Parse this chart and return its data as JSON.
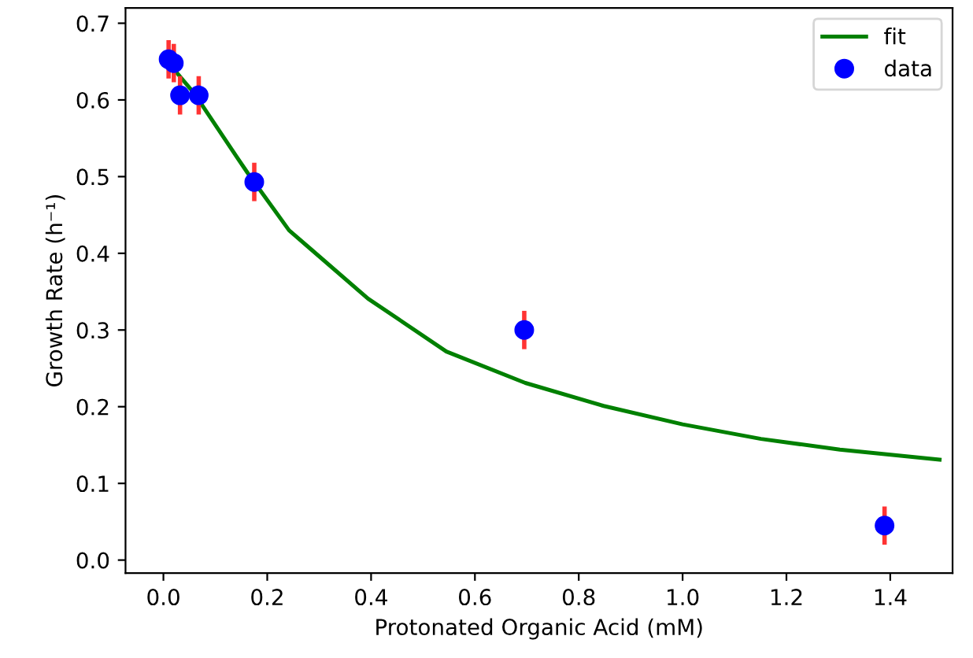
{
  "chart_data": {
    "type": "scatter",
    "xlabel": "Protonated Organic Acid (mM)",
    "ylabel": "Growth Rate (h⁻¹)",
    "series": [
      {
        "name": "fit",
        "type": "line",
        "color": "#008000",
        "marker": "none",
        "x": [
          0,
          0.06,
          0.141,
          0.162,
          0.242,
          0.283,
          0.394,
          0.545,
          0.697,
          0.848,
          1.0,
          1.151,
          1.303,
          1.495
        ],
        "values": [
          0.656,
          0.608,
          0.526,
          0.505,
          0.43,
          0.406,
          0.341,
          0.272,
          0.231,
          0.201,
          0.177,
          0.158,
          0.144,
          0.131
        ]
      },
      {
        "name": "data",
        "color": "#0000ff",
        "marker": "circle",
        "x": [
          0.01,
          0.02,
          0.032,
          0.068,
          0.175,
          0.695,
          1.389
        ],
        "values": [
          0.653,
          0.648,
          0.606,
          0.606,
          0.493,
          0.3,
          0.045
        ],
        "errors": [
          0.025,
          0.025,
          0.025,
          0.025,
          0.025,
          0.025,
          0.025
        ]
      }
    ],
    "xlim": [
      -0.073,
      1.52
    ],
    "xticks": [
      {
        "value": 0,
        "label": "0.0"
      },
      0.2,
      0.4,
      0.6,
      0.8,
      {
        "value": 1,
        "label": "1.0"
      },
      1.2,
      1.4
    ],
    "ylim": [
      -0.017,
      0.72
    ],
    "yticks": [
      {
        "value": 0,
        "label": "0.0"
      },
      0.1,
      0.2,
      0.3,
      0.4,
      0.5,
      0.6,
      0.7
    ],
    "legend": "top right",
    "grid": false
  }
}
